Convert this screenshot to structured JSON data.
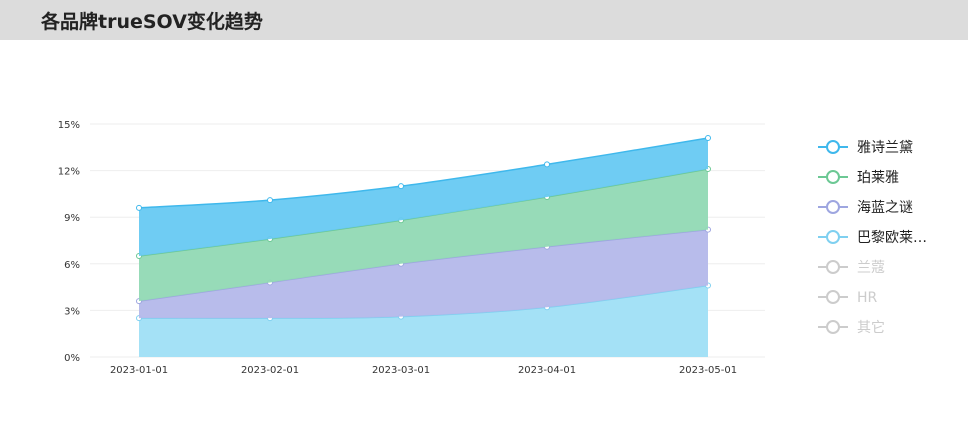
{
  "header": {
    "title": "各品牌trueSOV变化趋势"
  },
  "chart_data": {
    "type": "area",
    "stacked": true,
    "title": "各品牌trueSOV变化趋势",
    "x": [
      "2023-01-01",
      "2023-02-01",
      "2023-03-01",
      "2023-04-01",
      "2023-05-01"
    ],
    "y_ticks": [
      "0%",
      "3%",
      "6%",
      "9%",
      "12%",
      "15%"
    ],
    "ylim": [
      0,
      15
    ],
    "grid": true,
    "legend_position": "right",
    "series": [
      {
        "name": "巴黎欧莱雅",
        "legend_label": "巴黎欧莱…",
        "color": "#9fdff5",
        "line": "#7fd0f0",
        "active": true,
        "values": [
          2.5,
          2.5,
          2.6,
          3.2,
          4.6
        ]
      },
      {
        "name": "海蓝之谜",
        "legend_label": "海蓝之谜",
        "color": "#b4b8ea",
        "line": "#9ea6e0",
        "active": true,
        "values": [
          1.1,
          2.3,
          3.4,
          3.9,
          3.6
        ]
      },
      {
        "name": "珀莱雅",
        "legend_label": "珀莱雅",
        "color": "#91d9b4",
        "line": "#6cc894",
        "active": true,
        "values": [
          2.9,
          2.8,
          2.8,
          3.2,
          3.9
        ]
      },
      {
        "name": "雅诗兰黛",
        "legend_label": "雅诗兰黛",
        "color": "#67c9f2",
        "line": "#3fb8ec",
        "active": true,
        "values": [
          3.1,
          2.5,
          2.2,
          2.1,
          2.0
        ]
      }
    ],
    "legend": [
      {
        "label": "雅诗兰黛",
        "color": "#3fb8ec",
        "active": true
      },
      {
        "label": "珀莱雅",
        "color": "#6cc894",
        "active": true
      },
      {
        "label": "海蓝之谜",
        "color": "#9ea6e0",
        "active": true
      },
      {
        "label": "巴黎欧莱…",
        "color": "#7fd0f0",
        "active": true
      },
      {
        "label": "兰蔻",
        "color": "#cccccc",
        "active": false
      },
      {
        "label": "HR",
        "color": "#cccccc",
        "active": false
      },
      {
        "label": "其它",
        "color": "#cccccc",
        "active": false
      }
    ]
  }
}
